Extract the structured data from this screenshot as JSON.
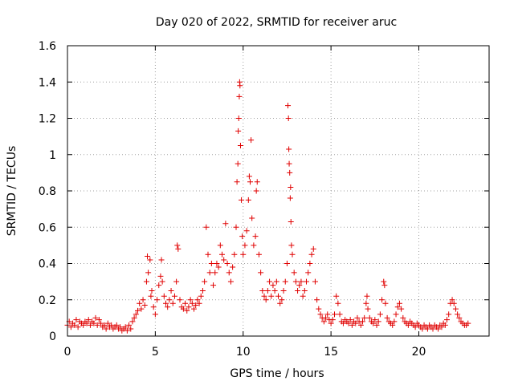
{
  "chart_data": {
    "type": "scatter",
    "title": "Day 020 of 2022, SRMTID for receiver aruc",
    "xlabel": "GPS time / hours",
    "ylabel": "SRMTID / TECUs",
    "xlim": [
      0,
      24
    ],
    "ylim": [
      0,
      1.6
    ],
    "xticks": [
      0,
      5,
      10,
      15,
      20
    ],
    "yticks": [
      0,
      0.2,
      0.4,
      0.6,
      0.8,
      1,
      1.2,
      1.4,
      1.6
    ],
    "ytick_labels": [
      "0",
      "0.2",
      "0.4",
      "0.6",
      "0.8",
      "1",
      "1.2",
      "1.4",
      "1.6"
    ],
    "grid": true,
    "marker": "+",
    "color": "#e00000",
    "series": [
      {
        "name": "SRMTID",
        "points": [
          [
            0.0,
            0.06
          ],
          [
            0.1,
            0.08
          ],
          [
            0.2,
            0.05
          ],
          [
            0.3,
            0.07
          ],
          [
            0.4,
            0.06
          ],
          [
            0.5,
            0.09
          ],
          [
            0.6,
            0.05
          ],
          [
            0.7,
            0.08
          ],
          [
            0.8,
            0.07
          ],
          [
            0.9,
            0.06
          ],
          [
            1.0,
            0.08
          ],
          [
            1.1,
            0.07
          ],
          [
            1.2,
            0.09
          ],
          [
            1.3,
            0.06
          ],
          [
            1.4,
            0.08
          ],
          [
            1.5,
            0.07
          ],
          [
            1.6,
            0.1
          ],
          [
            1.7,
            0.06
          ],
          [
            1.8,
            0.09
          ],
          [
            1.9,
            0.07
          ],
          [
            2.0,
            0.05
          ],
          [
            2.1,
            0.06
          ],
          [
            2.2,
            0.04
          ],
          [
            2.3,
            0.07
          ],
          [
            2.4,
            0.05
          ],
          [
            2.5,
            0.06
          ],
          [
            2.6,
            0.04
          ],
          [
            2.7,
            0.05
          ],
          [
            2.8,
            0.06
          ],
          [
            2.9,
            0.04
          ],
          [
            3.0,
            0.05
          ],
          [
            3.1,
            0.03
          ],
          [
            3.2,
            0.04
          ],
          [
            3.3,
            0.05
          ],
          [
            3.4,
            0.03
          ],
          [
            3.5,
            0.06
          ],
          [
            3.6,
            0.04
          ],
          [
            3.7,
            0.08
          ],
          [
            3.8,
            0.1
          ],
          [
            3.9,
            0.12
          ],
          [
            4.0,
            0.14
          ],
          [
            4.1,
            0.18
          ],
          [
            4.2,
            0.15
          ],
          [
            4.3,
            0.2
          ],
          [
            4.4,
            0.17
          ],
          [
            4.5,
            0.3
          ],
          [
            4.55,
            0.44
          ],
          [
            4.6,
            0.35
          ],
          [
            4.7,
            0.42
          ],
          [
            4.75,
            0.22
          ],
          [
            4.8,
            0.25
          ],
          [
            4.9,
            0.16
          ],
          [
            5.0,
            0.12
          ],
          [
            5.1,
            0.2
          ],
          [
            5.2,
            0.28
          ],
          [
            5.3,
            0.33
          ],
          [
            5.35,
            0.42
          ],
          [
            5.4,
            0.3
          ],
          [
            5.5,
            0.22
          ],
          [
            5.6,
            0.18
          ],
          [
            5.7,
            0.16
          ],
          [
            5.8,
            0.2
          ],
          [
            5.9,
            0.25
          ],
          [
            6.0,
            0.18
          ],
          [
            6.1,
            0.22
          ],
          [
            6.2,
            0.3
          ],
          [
            6.25,
            0.5
          ],
          [
            6.3,
            0.48
          ],
          [
            6.4,
            0.2
          ],
          [
            6.5,
            0.16
          ],
          [
            6.6,
            0.15
          ],
          [
            6.7,
            0.18
          ],
          [
            6.8,
            0.14
          ],
          [
            6.9,
            0.16
          ],
          [
            7.0,
            0.2
          ],
          [
            7.1,
            0.18
          ],
          [
            7.2,
            0.15
          ],
          [
            7.3,
            0.17
          ],
          [
            7.4,
            0.2
          ],
          [
            7.5,
            0.18
          ],
          [
            7.6,
            0.22
          ],
          [
            7.7,
            0.25
          ],
          [
            7.8,
            0.3
          ],
          [
            7.9,
            0.6
          ],
          [
            8.0,
            0.45
          ],
          [
            8.1,
            0.35
          ],
          [
            8.2,
            0.4
          ],
          [
            8.3,
            0.28
          ],
          [
            8.4,
            0.35
          ],
          [
            8.5,
            0.4
          ],
          [
            8.6,
            0.38
          ],
          [
            8.7,
            0.5
          ],
          [
            8.8,
            0.45
          ],
          [
            8.9,
            0.42
          ],
          [
            9.0,
            0.62
          ],
          [
            9.1,
            0.4
          ],
          [
            9.2,
            0.35
          ],
          [
            9.3,
            0.3
          ],
          [
            9.4,
            0.38
          ],
          [
            9.5,
            0.45
          ],
          [
            9.6,
            0.6
          ],
          [
            9.65,
            0.85
          ],
          [
            9.7,
            0.95
          ],
          [
            9.72,
            1.13
          ],
          [
            9.75,
            1.2
          ],
          [
            9.78,
            1.32
          ],
          [
            9.8,
            1.4
          ],
          [
            9.82,
            1.38
          ],
          [
            9.85,
            1.05
          ],
          [
            9.9,
            0.75
          ],
          [
            9.95,
            0.55
          ],
          [
            10.0,
            0.45
          ],
          [
            10.1,
            0.5
          ],
          [
            10.2,
            0.58
          ],
          [
            10.3,
            0.75
          ],
          [
            10.35,
            0.88
          ],
          [
            10.4,
            0.85
          ],
          [
            10.45,
            1.08
          ],
          [
            10.5,
            0.65
          ],
          [
            10.6,
            0.5
          ],
          [
            10.7,
            0.55
          ],
          [
            10.75,
            0.8
          ],
          [
            10.8,
            0.85
          ],
          [
            10.9,
            0.45
          ],
          [
            11.0,
            0.35
          ],
          [
            11.1,
            0.25
          ],
          [
            11.2,
            0.22
          ],
          [
            11.3,
            0.2
          ],
          [
            11.4,
            0.25
          ],
          [
            11.5,
            0.3
          ],
          [
            11.6,
            0.22
          ],
          [
            11.7,
            0.28
          ],
          [
            11.8,
            0.25
          ],
          [
            11.9,
            0.3
          ],
          [
            12.0,
            0.22
          ],
          [
            12.1,
            0.18
          ],
          [
            12.2,
            0.2
          ],
          [
            12.3,
            0.25
          ],
          [
            12.4,
            0.3
          ],
          [
            12.5,
            0.4
          ],
          [
            12.55,
            1.27
          ],
          [
            12.58,
            1.2
          ],
          [
            12.6,
            1.03
          ],
          [
            12.62,
            0.95
          ],
          [
            12.65,
            0.9
          ],
          [
            12.68,
            0.76
          ],
          [
            12.7,
            0.82
          ],
          [
            12.72,
            0.63
          ],
          [
            12.75,
            0.5
          ],
          [
            12.8,
            0.45
          ],
          [
            12.9,
            0.35
          ],
          [
            13.0,
            0.3
          ],
          [
            13.1,
            0.25
          ],
          [
            13.2,
            0.28
          ],
          [
            13.3,
            0.3
          ],
          [
            13.4,
            0.22
          ],
          [
            13.5,
            0.25
          ],
          [
            13.6,
            0.3
          ],
          [
            13.7,
            0.35
          ],
          [
            13.8,
            0.4
          ],
          [
            13.9,
            0.45
          ],
          [
            14.0,
            0.48
          ],
          [
            14.1,
            0.3
          ],
          [
            14.2,
            0.2
          ],
          [
            14.3,
            0.15
          ],
          [
            14.4,
            0.12
          ],
          [
            14.5,
            0.1
          ],
          [
            14.6,
            0.08
          ],
          [
            14.7,
            0.1
          ],
          [
            14.8,
            0.12
          ],
          [
            14.9,
            0.09
          ],
          [
            15.0,
            0.07
          ],
          [
            15.1,
            0.09
          ],
          [
            15.2,
            0.12
          ],
          [
            15.3,
            0.22
          ],
          [
            15.4,
            0.18
          ],
          [
            15.5,
            0.12
          ],
          [
            15.6,
            0.08
          ],
          [
            15.7,
            0.07
          ],
          [
            15.8,
            0.09
          ],
          [
            15.9,
            0.08
          ],
          [
            16.0,
            0.07
          ],
          [
            16.1,
            0.09
          ],
          [
            16.2,
            0.06
          ],
          [
            16.3,
            0.08
          ],
          [
            16.4,
            0.07
          ],
          [
            16.5,
            0.1
          ],
          [
            16.6,
            0.08
          ],
          [
            16.7,
            0.06
          ],
          [
            16.8,
            0.08
          ],
          [
            16.9,
            0.1
          ],
          [
            17.0,
            0.18
          ],
          [
            17.05,
            0.22
          ],
          [
            17.1,
            0.15
          ],
          [
            17.2,
            0.1
          ],
          [
            17.3,
            0.08
          ],
          [
            17.4,
            0.07
          ],
          [
            17.5,
            0.09
          ],
          [
            17.6,
            0.06
          ],
          [
            17.7,
            0.08
          ],
          [
            17.8,
            0.12
          ],
          [
            17.9,
            0.2
          ],
          [
            18.0,
            0.3
          ],
          [
            18.05,
            0.28
          ],
          [
            18.1,
            0.18
          ],
          [
            18.2,
            0.1
          ],
          [
            18.3,
            0.08
          ],
          [
            18.4,
            0.07
          ],
          [
            18.5,
            0.06
          ],
          [
            18.6,
            0.08
          ],
          [
            18.7,
            0.12
          ],
          [
            18.8,
            0.16
          ],
          [
            18.9,
            0.18
          ],
          [
            19.0,
            0.15
          ],
          [
            19.1,
            0.1
          ],
          [
            19.2,
            0.08
          ],
          [
            19.3,
            0.07
          ],
          [
            19.4,
            0.06
          ],
          [
            19.5,
            0.08
          ],
          [
            19.6,
            0.07
          ],
          [
            19.7,
            0.06
          ],
          [
            19.8,
            0.05
          ],
          [
            19.9,
            0.07
          ],
          [
            20.0,
            0.06
          ],
          [
            20.1,
            0.05
          ],
          [
            20.2,
            0.04
          ],
          [
            20.3,
            0.06
          ],
          [
            20.4,
            0.05
          ],
          [
            20.5,
            0.04
          ],
          [
            20.6,
            0.06
          ],
          [
            20.7,
            0.05
          ],
          [
            20.8,
            0.04
          ],
          [
            20.9,
            0.06
          ],
          [
            21.0,
            0.05
          ],
          [
            21.1,
            0.04
          ],
          [
            21.2,
            0.06
          ],
          [
            21.3,
            0.05
          ],
          [
            21.4,
            0.07
          ],
          [
            21.5,
            0.06
          ],
          [
            21.6,
            0.09
          ],
          [
            21.7,
            0.12
          ],
          [
            21.8,
            0.18
          ],
          [
            21.9,
            0.2
          ],
          [
            22.0,
            0.18
          ],
          [
            22.1,
            0.15
          ],
          [
            22.2,
            0.12
          ],
          [
            22.3,
            0.1
          ],
          [
            22.4,
            0.08
          ],
          [
            22.5,
            0.07
          ],
          [
            22.6,
            0.06
          ],
          [
            22.7,
            0.06
          ],
          [
            22.8,
            0.07
          ]
        ]
      }
    ]
  }
}
